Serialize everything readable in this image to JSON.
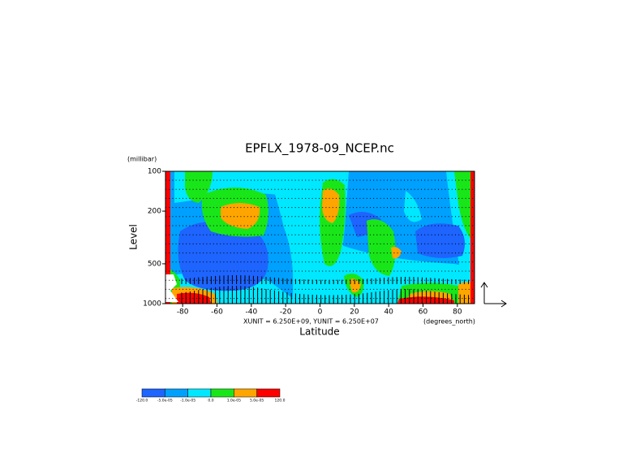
{
  "chart_data": {
    "type": "contour",
    "title": "EPFLX_1978-09_NCEP.nc",
    "y_unit": "(millibar)",
    "y_label": "Level",
    "x_label": "Latitude",
    "x_unit": "(degrees_north)",
    "vector_units": "XUNIT = 6.250E+09, YUNIT = 6.250E+07",
    "xlim": [
      -90,
      90
    ],
    "xticks": [
      -80,
      -60,
      -40,
      -20,
      0,
      20,
      40,
      60,
      80
    ],
    "ylim": [
      1000,
      100
    ],
    "y_log": true,
    "yticks": [
      100,
      200,
      500,
      1000
    ],
    "colorbar": {
      "colors": [
        "#1e64ff",
        "#00a0ff",
        "#00e8ff",
        "#19e619",
        "#ffa500",
        "#ff0000"
      ],
      "ticks": [
        {
          "value": -120,
          "label": "-120.0"
        },
        {
          "value": -5e-05,
          "label": "-5.0e-05"
        },
        {
          "value": -1e-05,
          "label": "-1.0e-05"
        },
        {
          "value": 0,
          "label": "0.0"
        },
        {
          "value": 1e-05,
          "label": "1.0e-05"
        },
        {
          "value": 5e-05,
          "label": "5.0e-05"
        },
        {
          "value": 120,
          "label": "120.0"
        }
      ]
    }
  }
}
